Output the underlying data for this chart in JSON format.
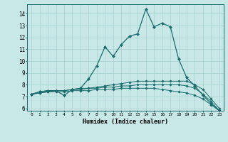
{
  "xlabel": "Humidex (Indice chaleur)",
  "ylabel": "",
  "background_color": "#c8e8e8",
  "grid_color": "#a8d0d0",
  "line_color": "#1a6b6b",
  "x": [
    0,
    1,
    2,
    3,
    4,
    5,
    6,
    7,
    8,
    9,
    10,
    11,
    12,
    13,
    14,
    15,
    16,
    17,
    18,
    19,
    20,
    21,
    22,
    23
  ],
  "line1": [
    7.2,
    7.4,
    7.5,
    7.5,
    7.1,
    7.6,
    7.7,
    8.5,
    9.6,
    11.2,
    10.4,
    11.4,
    12.1,
    12.3,
    14.4,
    12.9,
    13.2,
    12.9,
    10.2,
    8.6,
    7.9,
    7.1,
    6.4,
    5.8
  ],
  "line2": [
    7.2,
    7.4,
    7.5,
    7.5,
    7.5,
    7.6,
    7.7,
    7.7,
    7.8,
    7.9,
    8.0,
    8.1,
    8.2,
    8.3,
    8.3,
    8.3,
    8.3,
    8.3,
    8.3,
    8.3,
    8.0,
    7.6,
    6.8,
    6.0
  ],
  "line3": [
    7.2,
    7.3,
    7.4,
    7.5,
    7.5,
    7.6,
    7.6,
    7.7,
    7.7,
    7.8,
    7.8,
    7.9,
    7.9,
    8.0,
    8.0,
    8.0,
    8.0,
    8.0,
    8.0,
    7.9,
    7.7,
    7.2,
    6.6,
    5.8
  ],
  "line4": [
    7.2,
    7.3,
    7.4,
    7.4,
    7.4,
    7.5,
    7.5,
    7.5,
    7.6,
    7.6,
    7.6,
    7.7,
    7.7,
    7.7,
    7.7,
    7.7,
    7.6,
    7.5,
    7.4,
    7.3,
    7.1,
    6.8,
    6.3,
    5.8
  ],
  "ylim": [
    5.8,
    14.8
  ],
  "xlim": [
    -0.5,
    23.5
  ],
  "yticks": [
    6,
    7,
    8,
    9,
    10,
    11,
    12,
    13,
    14
  ],
  "xticks": [
    0,
    1,
    2,
    3,
    4,
    5,
    6,
    7,
    8,
    9,
    10,
    11,
    12,
    13,
    14,
    15,
    16,
    17,
    18,
    19,
    20,
    21,
    22,
    23
  ],
  "xtick_labels": [
    "0",
    "1",
    "2",
    "3",
    "4",
    "5",
    "6",
    "7",
    "8",
    "9",
    "10",
    "11",
    "12",
    "13",
    "14",
    "15",
    "16",
    "17",
    "18",
    "19",
    "20",
    "21",
    "22",
    "23"
  ]
}
